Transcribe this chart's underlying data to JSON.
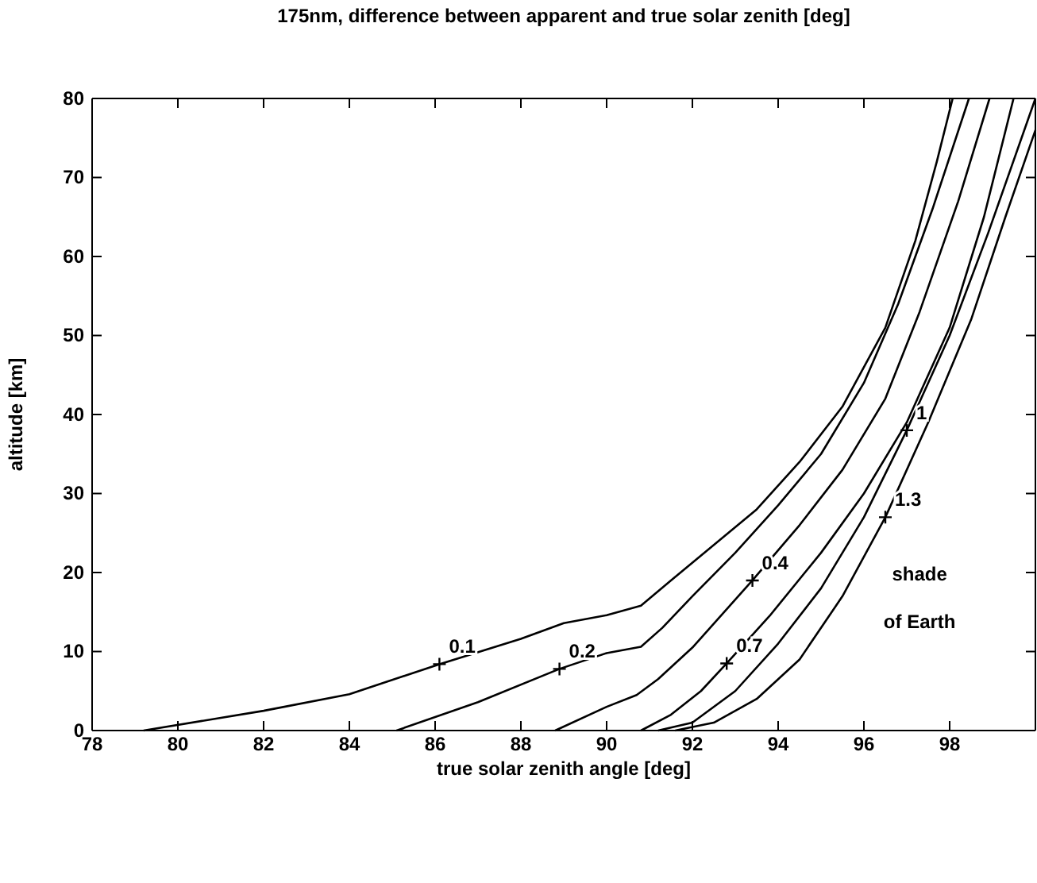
{
  "chart_data": {
    "type": "line",
    "title": "175nm, difference between apparent and true solar zenith [deg]",
    "xlabel": "true solar zenith angle [deg]",
    "ylabel": "altitude [km]",
    "xlim": [
      78,
      100
    ],
    "ylim": [
      0,
      80
    ],
    "xticks": [
      78,
      80,
      82,
      84,
      86,
      88,
      90,
      92,
      94,
      96,
      98
    ],
    "yticks": [
      0,
      10,
      20,
      30,
      40,
      50,
      60,
      70,
      80
    ],
    "grid": false,
    "marker": "none",
    "line_style": "solid",
    "series": [
      {
        "color": "#000000",
        "x": [
          79.2,
          82,
          84,
          86.1,
          88,
          89,
          90,
          90.8,
          91.5,
          92.5,
          93.5,
          94.5,
          95.5,
          96.5,
          97.2,
          97.7,
          98.07
        ],
        "values": [
          0,
          2.5,
          4.6,
          8.4,
          11.6,
          13.6,
          14.6,
          15.8,
          19,
          23.5,
          28,
          34,
          41,
          51,
          62,
          72,
          80
        ]
      },
      {
        "color": "#000000",
        "x": [
          85.1,
          87,
          88.9,
          90,
          90.8,
          91.3,
          92,
          93,
          94,
          95,
          96,
          96.8,
          97.6,
          98.45
        ],
        "values": [
          0,
          3.6,
          7.8,
          9.8,
          10.6,
          13,
          17,
          22.5,
          28.5,
          35,
          44,
          54,
          66,
          80
        ]
      },
      {
        "color": "#000000",
        "x": [
          88.8,
          90,
          90.7,
          91.2,
          92,
          93.4,
          94.5,
          95.5,
          96.5,
          97.3,
          98.2,
          98.93
        ],
        "values": [
          0,
          3,
          4.5,
          6.5,
          10.5,
          19,
          26,
          33,
          42,
          53,
          67,
          80
        ]
      },
      {
        "color": "#000000",
        "x": [
          90.8,
          91.5,
          92.2,
          92.8,
          93.8,
          95,
          96,
          97,
          98,
          98.8,
          99.49
        ],
        "values": [
          0,
          2,
          5,
          8.5,
          14.5,
          22.5,
          30,
          39,
          51,
          65,
          80
        ]
      },
      {
        "color": "#000000",
        "x": [
          91.2,
          92,
          93,
          94,
          95,
          96,
          97,
          98,
          98.9,
          100
        ],
        "values": [
          0,
          1,
          5,
          11,
          18,
          27,
          38,
          50,
          63,
          80
        ]
      },
      {
        "color": "#000000",
        "x": [
          91.6,
          92.5,
          93.5,
          94.5,
          95.5,
          96.5,
          97.5,
          98.5,
          99.3,
          100
        ],
        "values": [
          0,
          1,
          4,
          9,
          17,
          27,
          39,
          52,
          65,
          76
        ]
      }
    ],
    "annotations": [
      {
        "text": "0.1",
        "x": 86.1,
        "y": 8.4
      },
      {
        "text": "0.2",
        "x": 88.9,
        "y": 7.8
      },
      {
        "text": "0.4",
        "x": 93.4,
        "y": 19
      },
      {
        "text": "0.7",
        "x": 92.8,
        "y": 8.5
      },
      {
        "text": "1",
        "x": 97,
        "y": 38
      },
      {
        "text": "1.3",
        "x": 96.5,
        "y": 27
      },
      "shade",
      "of Earth"
    ]
  }
}
